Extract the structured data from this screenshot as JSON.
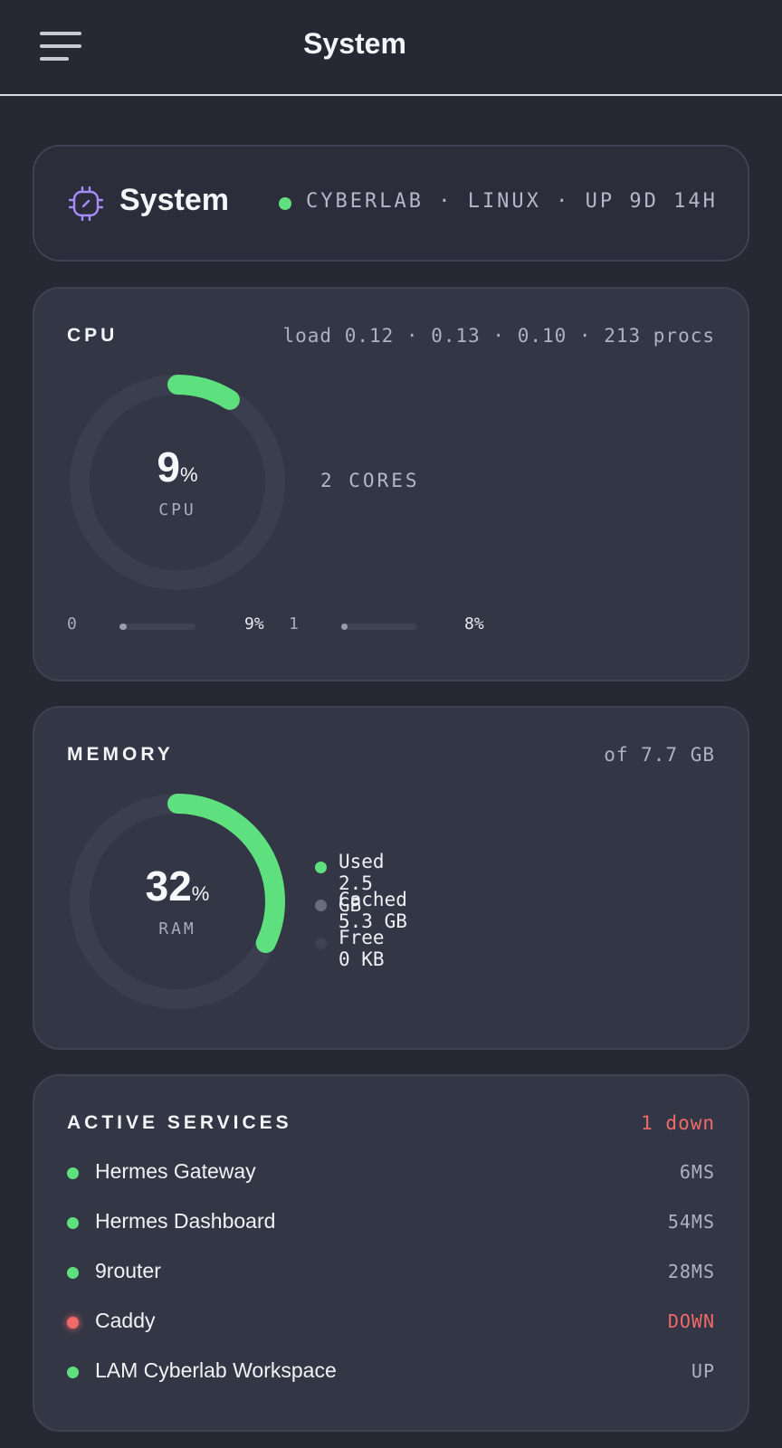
{
  "topbar": {
    "title": "System"
  },
  "header": {
    "title": "System",
    "meta": "CYBERLAB · LINUX · UP 9D 14H",
    "status_color": "#5fe07f"
  },
  "cpu": {
    "label": "CPU",
    "meta": "load 0.12 · 0.13 · 0.10 · 213 procs",
    "usage_value": "9",
    "usage_unit": "%",
    "usage_percent": 9,
    "gauge_label": "CPU",
    "cores_text": "2 CORES",
    "cores": [
      {
        "id": "0",
        "percent_label": "9%",
        "percent": 9
      },
      {
        "id": "1",
        "percent_label": "8%",
        "percent": 8
      }
    ]
  },
  "memory": {
    "label": "MEMORY",
    "meta": "of 7.7 GB",
    "usage_value": "32",
    "usage_unit": "%",
    "usage_percent": 32,
    "gauge_label": "RAM",
    "legend": [
      {
        "text": "Used 2.5 GB",
        "color": "#5fe07f"
      },
      {
        "text": "Cached 5.3 GB",
        "color": "#6a6d7c"
      },
      {
        "text": "Free 0 KB",
        "color": "#3f4253"
      }
    ]
  },
  "services": {
    "label": "ACTIVE SERVICES",
    "meta": "1 down",
    "items": [
      {
        "name": "Hermes Gateway",
        "status": "6MS",
        "state": "up"
      },
      {
        "name": "Hermes Dashboard",
        "status": "54MS",
        "state": "up"
      },
      {
        "name": "9router",
        "status": "28MS",
        "state": "up"
      },
      {
        "name": "Caddy",
        "status": "DOWN",
        "state": "down"
      },
      {
        "name": "LAM Cyberlab Workspace",
        "status": "UP",
        "state": "up"
      }
    ]
  },
  "colors": {
    "accent": "#5fe07f",
    "down": "#f06a6a",
    "icon_purple": "#a78bfa",
    "track": "#3b3e4e"
  }
}
